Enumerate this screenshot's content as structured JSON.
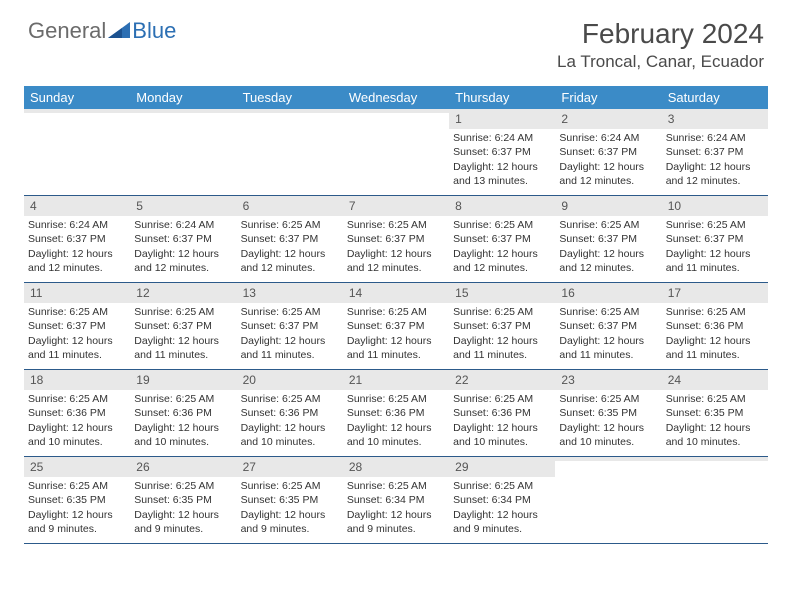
{
  "logo": {
    "word1": "General",
    "word2": "Blue"
  },
  "title": "February 2024",
  "location": "La Troncal, Canar, Ecuador",
  "colors": {
    "header_bg": "#3b8bc7",
    "header_text": "#ffffff",
    "daynum_bg": "#e8e8e8",
    "week_border": "#2c5a8a",
    "logo_gray": "#6b6b6b",
    "logo_blue": "#2c6fb3"
  },
  "weekdays": [
    "Sunday",
    "Monday",
    "Tuesday",
    "Wednesday",
    "Thursday",
    "Friday",
    "Saturday"
  ],
  "weeks": [
    [
      {
        "day": "",
        "sunrise": "",
        "sunset": "",
        "daylight1": "",
        "daylight2": ""
      },
      {
        "day": "",
        "sunrise": "",
        "sunset": "",
        "daylight1": "",
        "daylight2": ""
      },
      {
        "day": "",
        "sunrise": "",
        "sunset": "",
        "daylight1": "",
        "daylight2": ""
      },
      {
        "day": "",
        "sunrise": "",
        "sunset": "",
        "daylight1": "",
        "daylight2": ""
      },
      {
        "day": "1",
        "sunrise": "Sunrise: 6:24 AM",
        "sunset": "Sunset: 6:37 PM",
        "daylight1": "Daylight: 12 hours",
        "daylight2": "and 13 minutes."
      },
      {
        "day": "2",
        "sunrise": "Sunrise: 6:24 AM",
        "sunset": "Sunset: 6:37 PM",
        "daylight1": "Daylight: 12 hours",
        "daylight2": "and 12 minutes."
      },
      {
        "day": "3",
        "sunrise": "Sunrise: 6:24 AM",
        "sunset": "Sunset: 6:37 PM",
        "daylight1": "Daylight: 12 hours",
        "daylight2": "and 12 minutes."
      }
    ],
    [
      {
        "day": "4",
        "sunrise": "Sunrise: 6:24 AM",
        "sunset": "Sunset: 6:37 PM",
        "daylight1": "Daylight: 12 hours",
        "daylight2": "and 12 minutes."
      },
      {
        "day": "5",
        "sunrise": "Sunrise: 6:24 AM",
        "sunset": "Sunset: 6:37 PM",
        "daylight1": "Daylight: 12 hours",
        "daylight2": "and 12 minutes."
      },
      {
        "day": "6",
        "sunrise": "Sunrise: 6:25 AM",
        "sunset": "Sunset: 6:37 PM",
        "daylight1": "Daylight: 12 hours",
        "daylight2": "and 12 minutes."
      },
      {
        "day": "7",
        "sunrise": "Sunrise: 6:25 AM",
        "sunset": "Sunset: 6:37 PM",
        "daylight1": "Daylight: 12 hours",
        "daylight2": "and 12 minutes."
      },
      {
        "day": "8",
        "sunrise": "Sunrise: 6:25 AM",
        "sunset": "Sunset: 6:37 PM",
        "daylight1": "Daylight: 12 hours",
        "daylight2": "and 12 minutes."
      },
      {
        "day": "9",
        "sunrise": "Sunrise: 6:25 AM",
        "sunset": "Sunset: 6:37 PM",
        "daylight1": "Daylight: 12 hours",
        "daylight2": "and 12 minutes."
      },
      {
        "day": "10",
        "sunrise": "Sunrise: 6:25 AM",
        "sunset": "Sunset: 6:37 PM",
        "daylight1": "Daylight: 12 hours",
        "daylight2": "and 11 minutes."
      }
    ],
    [
      {
        "day": "11",
        "sunrise": "Sunrise: 6:25 AM",
        "sunset": "Sunset: 6:37 PM",
        "daylight1": "Daylight: 12 hours",
        "daylight2": "and 11 minutes."
      },
      {
        "day": "12",
        "sunrise": "Sunrise: 6:25 AM",
        "sunset": "Sunset: 6:37 PM",
        "daylight1": "Daylight: 12 hours",
        "daylight2": "and 11 minutes."
      },
      {
        "day": "13",
        "sunrise": "Sunrise: 6:25 AM",
        "sunset": "Sunset: 6:37 PM",
        "daylight1": "Daylight: 12 hours",
        "daylight2": "and 11 minutes."
      },
      {
        "day": "14",
        "sunrise": "Sunrise: 6:25 AM",
        "sunset": "Sunset: 6:37 PM",
        "daylight1": "Daylight: 12 hours",
        "daylight2": "and 11 minutes."
      },
      {
        "day": "15",
        "sunrise": "Sunrise: 6:25 AM",
        "sunset": "Sunset: 6:37 PM",
        "daylight1": "Daylight: 12 hours",
        "daylight2": "and 11 minutes."
      },
      {
        "day": "16",
        "sunrise": "Sunrise: 6:25 AM",
        "sunset": "Sunset: 6:37 PM",
        "daylight1": "Daylight: 12 hours",
        "daylight2": "and 11 minutes."
      },
      {
        "day": "17",
        "sunrise": "Sunrise: 6:25 AM",
        "sunset": "Sunset: 6:36 PM",
        "daylight1": "Daylight: 12 hours",
        "daylight2": "and 11 minutes."
      }
    ],
    [
      {
        "day": "18",
        "sunrise": "Sunrise: 6:25 AM",
        "sunset": "Sunset: 6:36 PM",
        "daylight1": "Daylight: 12 hours",
        "daylight2": "and 10 minutes."
      },
      {
        "day": "19",
        "sunrise": "Sunrise: 6:25 AM",
        "sunset": "Sunset: 6:36 PM",
        "daylight1": "Daylight: 12 hours",
        "daylight2": "and 10 minutes."
      },
      {
        "day": "20",
        "sunrise": "Sunrise: 6:25 AM",
        "sunset": "Sunset: 6:36 PM",
        "daylight1": "Daylight: 12 hours",
        "daylight2": "and 10 minutes."
      },
      {
        "day": "21",
        "sunrise": "Sunrise: 6:25 AM",
        "sunset": "Sunset: 6:36 PM",
        "daylight1": "Daylight: 12 hours",
        "daylight2": "and 10 minutes."
      },
      {
        "day": "22",
        "sunrise": "Sunrise: 6:25 AM",
        "sunset": "Sunset: 6:36 PM",
        "daylight1": "Daylight: 12 hours",
        "daylight2": "and 10 minutes."
      },
      {
        "day": "23",
        "sunrise": "Sunrise: 6:25 AM",
        "sunset": "Sunset: 6:35 PM",
        "daylight1": "Daylight: 12 hours",
        "daylight2": "and 10 minutes."
      },
      {
        "day": "24",
        "sunrise": "Sunrise: 6:25 AM",
        "sunset": "Sunset: 6:35 PM",
        "daylight1": "Daylight: 12 hours",
        "daylight2": "and 10 minutes."
      }
    ],
    [
      {
        "day": "25",
        "sunrise": "Sunrise: 6:25 AM",
        "sunset": "Sunset: 6:35 PM",
        "daylight1": "Daylight: 12 hours",
        "daylight2": "and 9 minutes."
      },
      {
        "day": "26",
        "sunrise": "Sunrise: 6:25 AM",
        "sunset": "Sunset: 6:35 PM",
        "daylight1": "Daylight: 12 hours",
        "daylight2": "and 9 minutes."
      },
      {
        "day": "27",
        "sunrise": "Sunrise: 6:25 AM",
        "sunset": "Sunset: 6:35 PM",
        "daylight1": "Daylight: 12 hours",
        "daylight2": "and 9 minutes."
      },
      {
        "day": "28",
        "sunrise": "Sunrise: 6:25 AM",
        "sunset": "Sunset: 6:34 PM",
        "daylight1": "Daylight: 12 hours",
        "daylight2": "and 9 minutes."
      },
      {
        "day": "29",
        "sunrise": "Sunrise: 6:25 AM",
        "sunset": "Sunset: 6:34 PM",
        "daylight1": "Daylight: 12 hours",
        "daylight2": "and 9 minutes."
      },
      {
        "day": "",
        "sunrise": "",
        "sunset": "",
        "daylight1": "",
        "daylight2": ""
      },
      {
        "day": "",
        "sunrise": "",
        "sunset": "",
        "daylight1": "",
        "daylight2": ""
      }
    ]
  ]
}
